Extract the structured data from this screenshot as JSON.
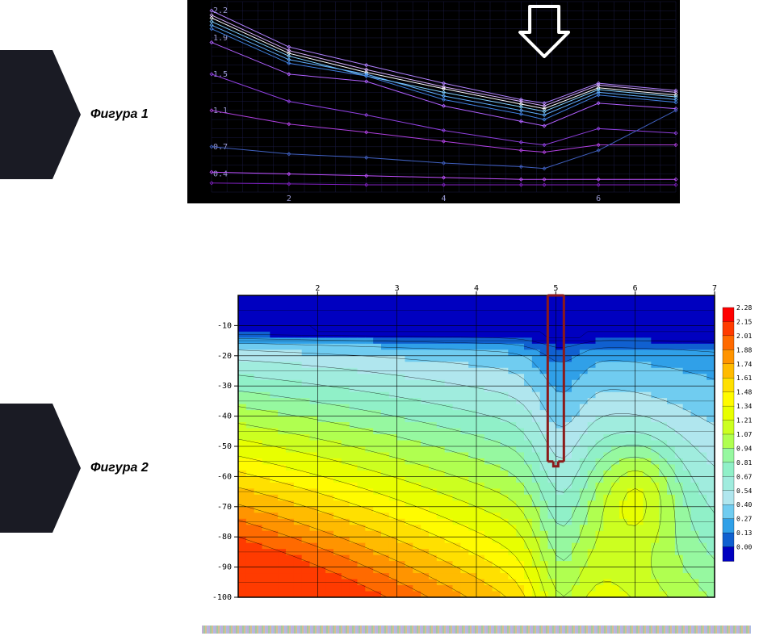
{
  "labels": {
    "fig1": "Фигура 1",
    "fig2": "Фигура 2",
    "fontSize": 16,
    "color": "#000"
  },
  "chart1": {
    "type": "line",
    "bg": "#000000",
    "grid": "#1a1a40",
    "axisText": "#9b9bd4",
    "axisFontSize": 10,
    "xRange": [
      1,
      7
    ],
    "yRange": [
      0.2,
      2.3
    ],
    "yTicks": [
      0.4,
      0.7,
      1.1,
      1.5,
      1.9,
      2.2
    ],
    "xTicks": [
      2,
      4,
      6
    ],
    "gridXStep": 0.2,
    "gridYStep": 0.1,
    "lineWidth": 1,
    "markerSize": 2,
    "arrow": {
      "x": 5.3,
      "color": "#ffffff",
      "strokeWidth": 4
    },
    "series": [
      {
        "color": "#b080ff",
        "pts": [
          [
            1,
            2.2
          ],
          [
            2,
            1.8
          ],
          [
            3,
            1.6
          ],
          [
            4,
            1.4
          ],
          [
            5,
            1.22
          ],
          [
            5.3,
            1.18
          ],
          [
            6,
            1.4
          ],
          [
            7,
            1.32
          ]
        ]
      },
      {
        "color": "#d8b0ff",
        "pts": [
          [
            1,
            2.15
          ],
          [
            2,
            1.76
          ],
          [
            3,
            1.55
          ],
          [
            4,
            1.36
          ],
          [
            5,
            1.2
          ],
          [
            5.3,
            1.15
          ],
          [
            6,
            1.38
          ],
          [
            7,
            1.3
          ]
        ]
      },
      {
        "color": "#ffffff",
        "pts": [
          [
            1,
            2.12
          ],
          [
            2,
            1.73
          ],
          [
            3,
            1.52
          ],
          [
            4,
            1.34
          ],
          [
            5,
            1.17
          ],
          [
            5.3,
            1.12
          ],
          [
            6,
            1.35
          ],
          [
            7,
            1.27
          ]
        ]
      },
      {
        "color": "#80d0ff",
        "pts": [
          [
            1,
            2.08
          ],
          [
            2,
            1.7
          ],
          [
            3,
            1.48
          ],
          [
            4,
            1.3
          ],
          [
            5,
            1.14
          ],
          [
            5.3,
            1.09
          ],
          [
            6,
            1.33
          ],
          [
            7,
            1.25
          ]
        ]
      },
      {
        "color": "#60b0ff",
        "pts": [
          [
            1,
            2.04
          ],
          [
            2,
            1.66
          ],
          [
            3,
            1.5
          ],
          [
            4,
            1.26
          ],
          [
            5,
            1.1
          ],
          [
            5.3,
            1.05
          ],
          [
            6,
            1.3
          ],
          [
            7,
            1.22
          ]
        ]
      },
      {
        "color": "#4080e0",
        "pts": [
          [
            1,
            2.0
          ],
          [
            2,
            1.62
          ],
          [
            3,
            1.48
          ],
          [
            4,
            1.22
          ],
          [
            5,
            1.06
          ],
          [
            5.3,
            1.0
          ],
          [
            6,
            1.27
          ],
          [
            7,
            1.19
          ]
        ]
      },
      {
        "color": "#b060ff",
        "pts": [
          [
            1,
            1.85
          ],
          [
            2,
            1.5
          ],
          [
            3,
            1.42
          ],
          [
            4,
            1.15
          ],
          [
            5,
            0.98
          ],
          [
            5.3,
            0.93
          ],
          [
            6,
            1.18
          ],
          [
            7,
            1.12
          ]
        ]
      },
      {
        "color": "#9040e0",
        "pts": [
          [
            1,
            1.5
          ],
          [
            2,
            1.2
          ],
          [
            3,
            1.05
          ],
          [
            4,
            0.88
          ],
          [
            5,
            0.75
          ],
          [
            5.3,
            0.72
          ],
          [
            6,
            0.9
          ],
          [
            7,
            0.85
          ]
        ]
      },
      {
        "color": "#b040e0",
        "pts": [
          [
            1,
            1.1
          ],
          [
            2,
            0.95
          ],
          [
            3,
            0.86
          ],
          [
            4,
            0.76
          ],
          [
            5,
            0.66
          ],
          [
            5.3,
            0.64
          ],
          [
            6,
            0.72
          ],
          [
            7,
            0.72
          ]
        ]
      },
      {
        "color": "#4060c0",
        "pts": [
          [
            1,
            0.7
          ],
          [
            2,
            0.62
          ],
          [
            3,
            0.58
          ],
          [
            4,
            0.52
          ],
          [
            5,
            0.48
          ],
          [
            5.3,
            0.46
          ],
          [
            6,
            0.66
          ],
          [
            7,
            1.1
          ]
        ]
      },
      {
        "color": "#c050ff",
        "pts": [
          [
            1,
            0.42
          ],
          [
            2,
            0.4
          ],
          [
            3,
            0.38
          ],
          [
            4,
            0.36
          ],
          [
            5,
            0.34
          ],
          [
            5.3,
            0.34
          ],
          [
            6,
            0.34
          ],
          [
            7,
            0.34
          ]
        ]
      },
      {
        "color": "#8020c0",
        "pts": [
          [
            1,
            0.3
          ],
          [
            2,
            0.29
          ],
          [
            3,
            0.28
          ],
          [
            4,
            0.28
          ],
          [
            5,
            0.28
          ],
          [
            5.3,
            0.28
          ],
          [
            6,
            0.28
          ],
          [
            7,
            0.28
          ]
        ]
      }
    ]
  },
  "chart2": {
    "type": "heatmap",
    "bg": "#ffffff",
    "axisText": "#000000",
    "axisFontSize": 10,
    "xRange": [
      1,
      7
    ],
    "yRange": [
      -100,
      0
    ],
    "xTicks": [
      2,
      3,
      4,
      5,
      6,
      7
    ],
    "yTicks": [
      -10,
      -20,
      -30,
      -40,
      -50,
      -60,
      -70,
      -80,
      -90,
      -100
    ],
    "gridColor": "#000000",
    "gridWidth": 0.6,
    "legendFontSize": 8,
    "legendValues": [
      2.28,
      2.15,
      2.01,
      1.88,
      1.74,
      1.61,
      1.48,
      1.34,
      1.21,
      1.07,
      0.94,
      0.81,
      0.67,
      0.54,
      0.4,
      0.27,
      0.13,
      0.0
    ],
    "legendColors": [
      "#ff0000",
      "#ff3b00",
      "#ff6a00",
      "#ff9400",
      "#ffbb00",
      "#ffe000",
      "#fffb00",
      "#e8ff00",
      "#ccff20",
      "#b0ff50",
      "#96f8a0",
      "#90f0c8",
      "#a0ecde",
      "#b0e6ee",
      "#70ccf0",
      "#30a0e8",
      "#1060d0",
      "#0000c0"
    ],
    "marker": {
      "x": 5,
      "yTop": 0,
      "yBot": -55,
      "color": "#8b1a1a",
      "width": 3
    },
    "contourColor": "#000000",
    "contourWidth": 0.5,
    "nx": 60,
    "ny": 50
  }
}
